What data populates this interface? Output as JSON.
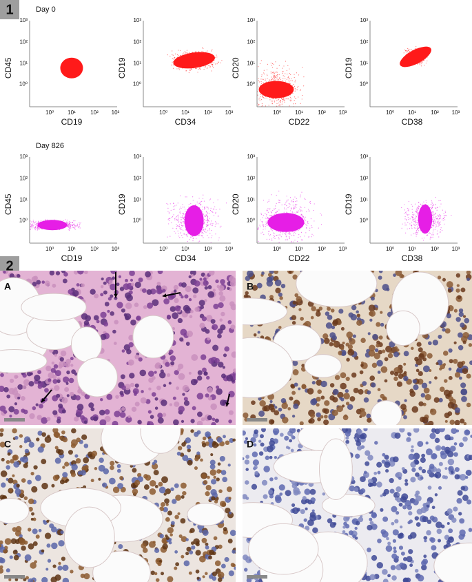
{
  "panel1": {
    "label": "1",
    "tick_labels": [
      "10⁰",
      "10¹",
      "10²",
      "10³"
    ],
    "rows": [
      {
        "title": "Day 0",
        "plots": [
          {
            "x_label": "CD19",
            "y_label": "CD45"
          },
          {
            "x_label": "CD34",
            "y_label": "CD19"
          },
          {
            "x_label": "CD22",
            "y_label": "CD20"
          },
          {
            "x_label": "CD38",
            "y_label": "CD19"
          }
        ]
      },
      {
        "title": "Day 826",
        "plots": [
          {
            "x_label": "CD19",
            "y_label": "CD45"
          },
          {
            "x_label": "CD34",
            "y_label": "CD19"
          },
          {
            "x_label": "CD22",
            "y_label": "CD20"
          },
          {
            "x_label": "CD38",
            "y_label": "CD19"
          }
        ]
      }
    ]
  },
  "panel2": {
    "label": "2",
    "images": [
      {
        "label": "A"
      },
      {
        "label": "B"
      },
      {
        "label": "C"
      },
      {
        "label": "D"
      }
    ]
  }
}
